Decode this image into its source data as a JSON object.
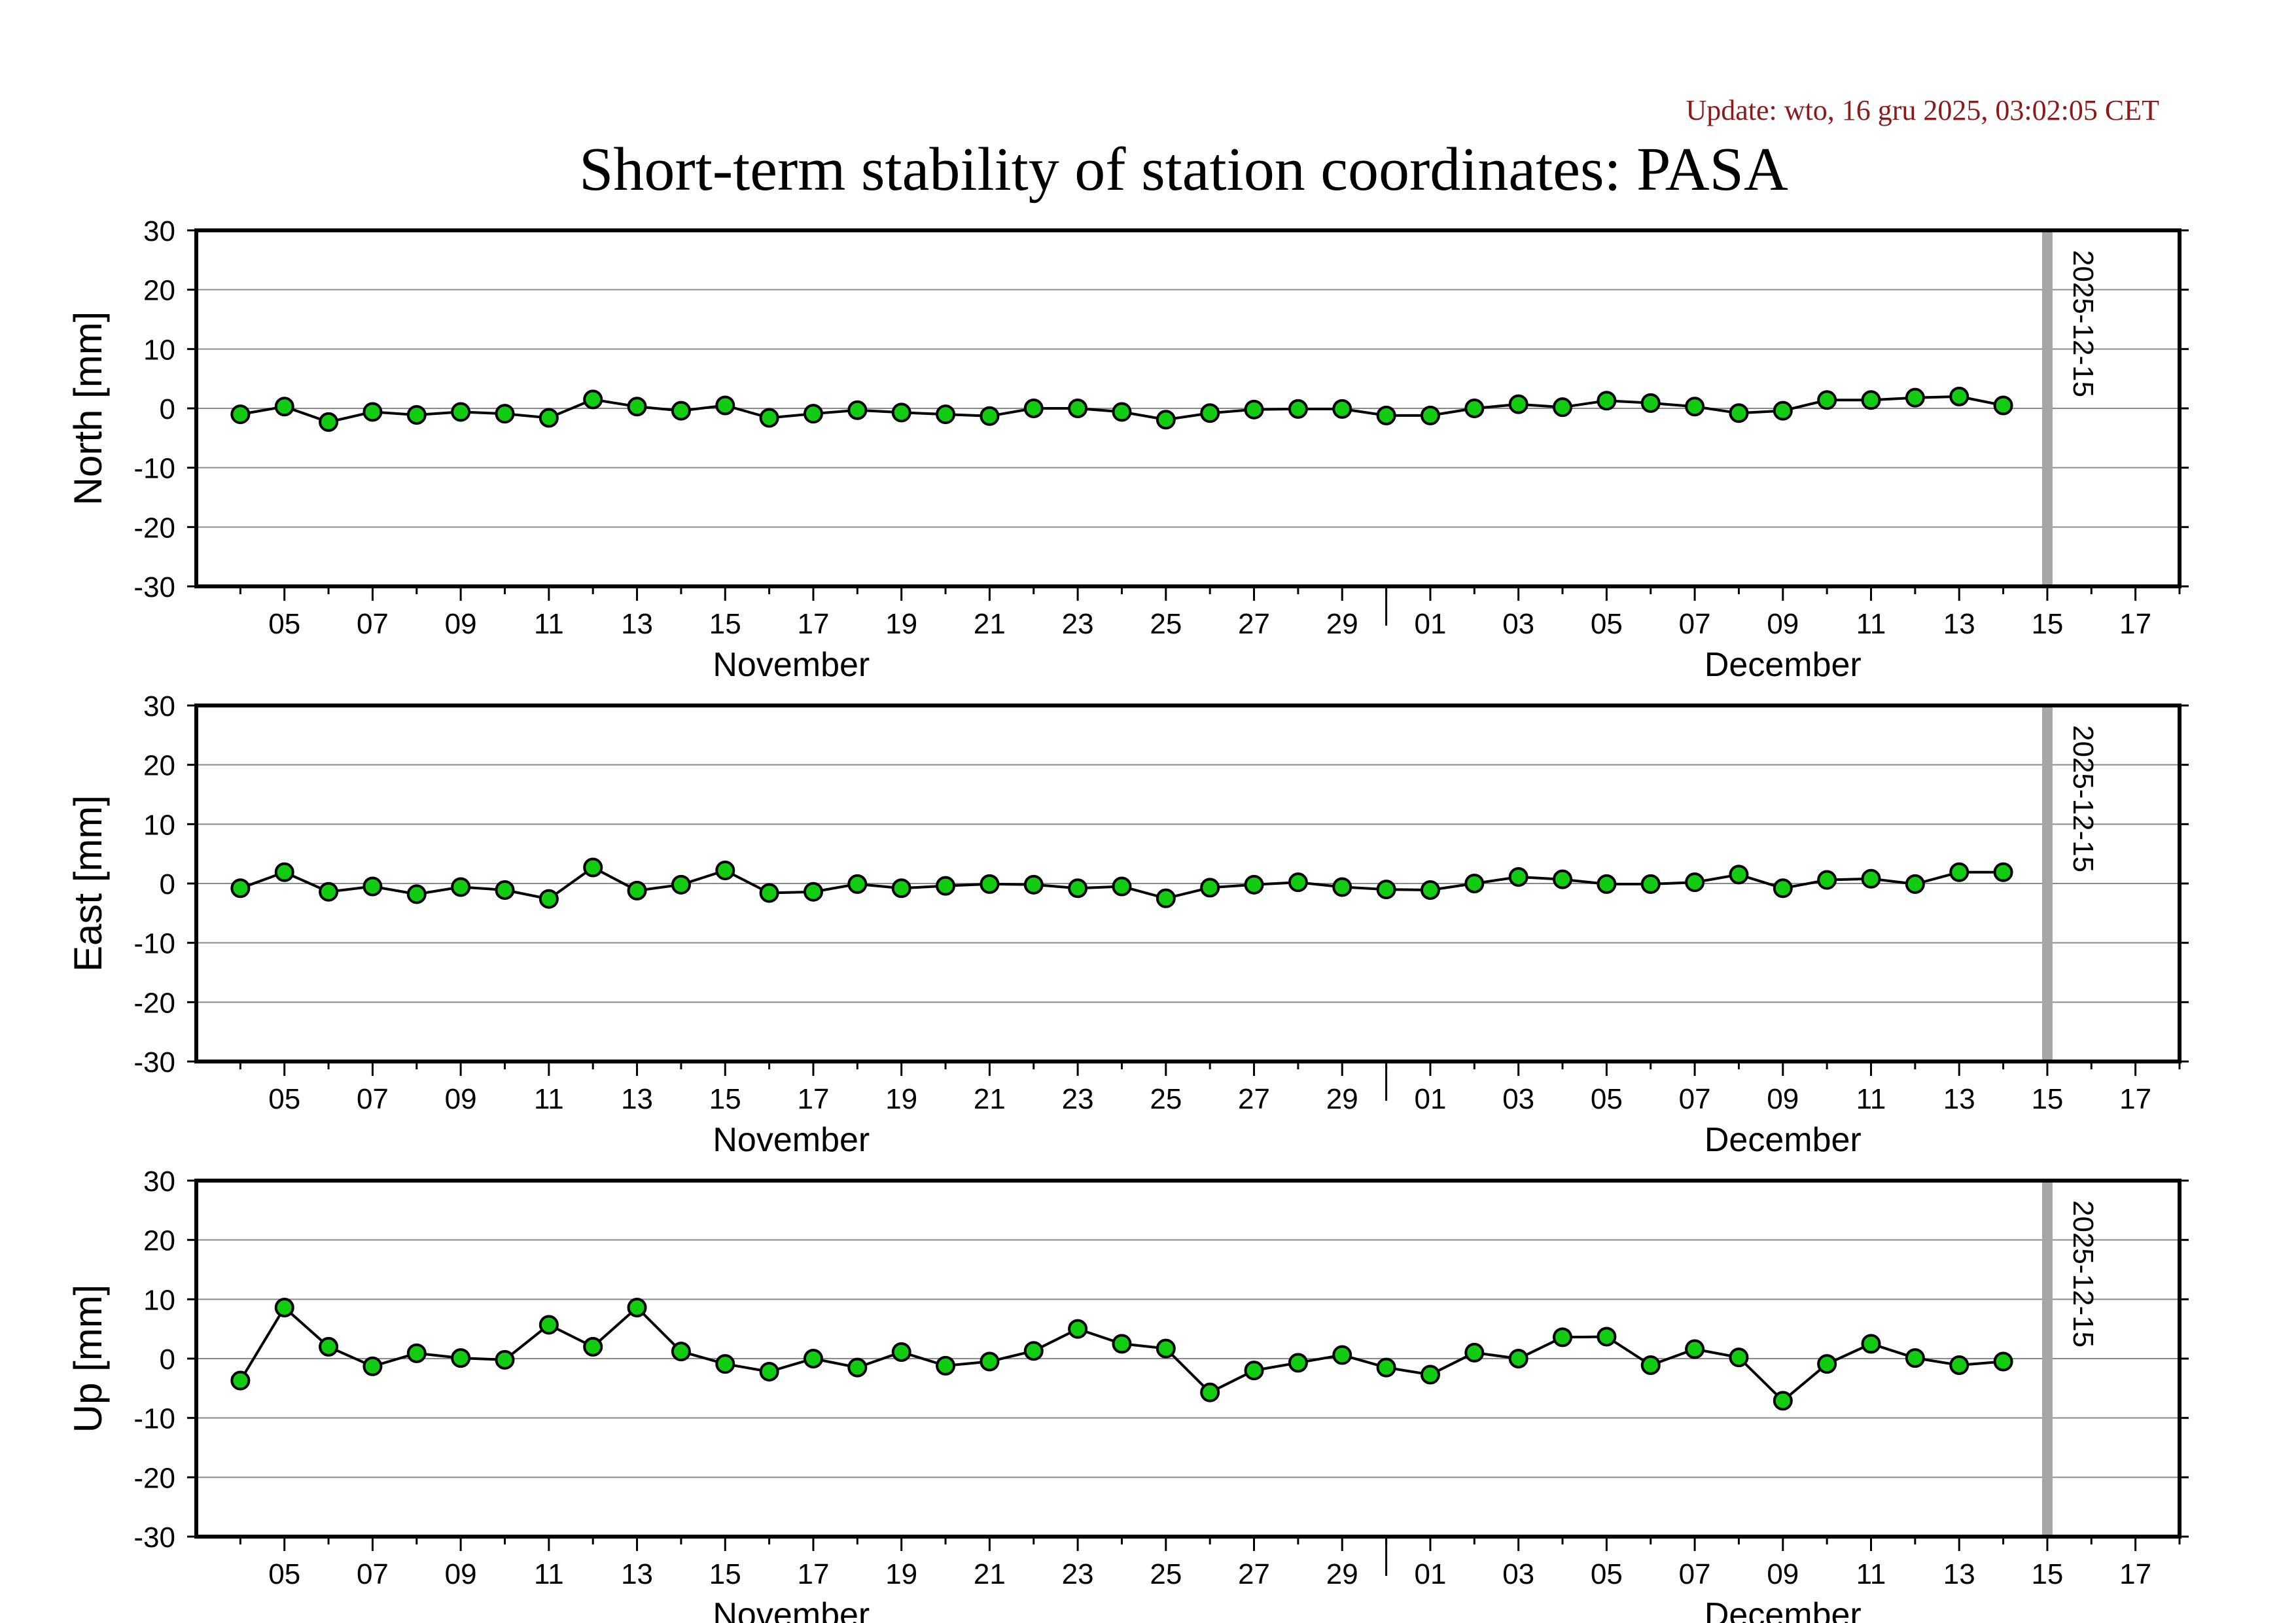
{
  "update_text": "Update: wto, 16 gru 2025, 03:02:05 CET",
  "colors": {
    "update": "#8b1a1a",
    "marker_fill": "#11cc11",
    "marker_stroke": "#000000",
    "line": "#000000",
    "grid": "#8a8a8a",
    "vline": "#a6a6a6"
  },
  "chart_data": {
    "type": "line",
    "title": "Short-term stability of station coordinates: PASA",
    "x_start": "2025-11-03",
    "x_end": "2025-12-18",
    "x_tick_labels": [
      "05",
      "07",
      "09",
      "11",
      "13",
      "15",
      "17",
      "19",
      "21",
      "23",
      "25",
      "27",
      "29",
      "01",
      "03",
      "05",
      "07",
      "09",
      "11",
      "13",
      "15",
      "17"
    ],
    "month_labels": [
      "November",
      "December"
    ],
    "x": [
      "2025-11-04",
      "2025-11-05",
      "2025-11-06",
      "2025-11-07",
      "2025-11-08",
      "2025-11-09",
      "2025-11-10",
      "2025-11-11",
      "2025-11-12",
      "2025-11-13",
      "2025-11-14",
      "2025-11-15",
      "2025-11-16",
      "2025-11-17",
      "2025-11-18",
      "2025-11-19",
      "2025-11-20",
      "2025-11-21",
      "2025-11-22",
      "2025-11-23",
      "2025-11-24",
      "2025-11-25",
      "2025-11-26",
      "2025-11-27",
      "2025-11-28",
      "2025-11-29",
      "2025-11-30",
      "2025-12-01",
      "2025-12-02",
      "2025-12-03",
      "2025-12-04",
      "2025-12-05",
      "2025-12-06",
      "2025-12-07",
      "2025-12-08",
      "2025-12-09",
      "2025-12-10",
      "2025-12-11",
      "2025-12-12",
      "2025-12-13",
      "2025-12-14"
    ],
    "ylim": [
      -30,
      30
    ],
    "y_ticks": [
      30,
      20,
      10,
      0,
      -10,
      -20,
      -30
    ],
    "grid": true,
    "marker_line": {
      "date": "2025-12-15",
      "label": "2025-12-15"
    },
    "series": [
      {
        "name": "",
        "ylabel": "North [mm]",
        "values": [
          -1,
          0.3,
          -2.3,
          -0.6,
          -1.1,
          -0.6,
          -0.9,
          -1.6,
          1.5,
          0.3,
          -0.4,
          0.5,
          -1.6,
          -0.9,
          -0.3,
          -0.7,
          -1,
          -1.3,
          0,
          0,
          -0.6,
          -1.9,
          -0.8,
          -0.2,
          -0.1,
          -0.1,
          -1.2,
          -1.2,
          0,
          0.7,
          0.2,
          1.3,
          0.9,
          0.3,
          -0.8,
          -0.4,
          1.4,
          1.4,
          1.8,
          2,
          0.5
        ]
      },
      {
        "name": "",
        "ylabel": "East [mm]",
        "values": [
          -0.8,
          1.9,
          -1.4,
          -0.5,
          -1.8,
          -0.6,
          -1.1,
          -2.6,
          2.7,
          -1.2,
          -0.2,
          2.2,
          -1.6,
          -1.4,
          -0.1,
          -0.8,
          -0.4,
          -0.1,
          -0.2,
          -0.8,
          -0.5,
          -2.5,
          -0.7,
          -0.2,
          0.2,
          -0.6,
          -1,
          -1.1,
          0,
          1.1,
          0.7,
          -0.1,
          -0.1,
          0.2,
          1.5,
          -0.8,
          0.6,
          0.8,
          -0.1,
          1.9,
          1.9
        ]
      },
      {
        "name": "",
        "ylabel": "Up [mm]",
        "values": [
          -3.7,
          8.6,
          2,
          -1.3,
          0.9,
          0.1,
          -0.2,
          5.7,
          2,
          8.6,
          1.2,
          -0.9,
          -2.2,
          0,
          -1.5,
          1.1,
          -1.2,
          -0.5,
          1.3,
          5,
          2.5,
          1.7,
          -5.7,
          -2,
          -0.7,
          0.6,
          -1.5,
          -2.7,
          1,
          0,
          3.6,
          3.7,
          -1.1,
          1.6,
          0.2,
          -7.1,
          -0.9,
          2.5,
          0.1,
          -1.1,
          -0.5
        ]
      }
    ]
  }
}
